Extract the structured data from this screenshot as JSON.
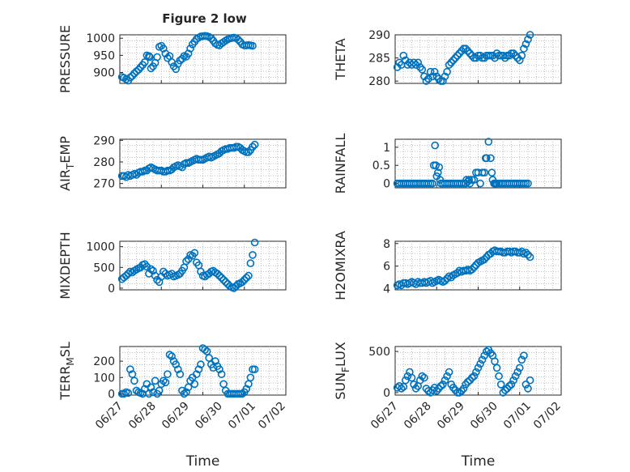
{
  "figure": {
    "title": "Figure 2 low",
    "time_label": "Time",
    "marker_color": "#0072BD",
    "grid": "minor-dotted"
  },
  "chart_data": [
    {
      "type": "scatter",
      "id": "pressure",
      "title": "Figure 2 low",
      "ylabel": "PRESSURE",
      "ylim": [
        868,
        1010
      ],
      "yticks": [
        900,
        950,
        1000
      ],
      "ytick_labels": [
        "900",
        "950",
        "1000"
      ],
      "xlim": [
        0,
        4
      ],
      "x_ticks_shown": false,
      "x": [
        0.05,
        0.1,
        0.15,
        0.2,
        0.25,
        0.3,
        0.35,
        0.4,
        0.45,
        0.5,
        0.55,
        0.6,
        0.65,
        0.7,
        0.72,
        0.75,
        0.8,
        0.85,
        0.9,
        0.95,
        1.0,
        1.05,
        1.1,
        1.15,
        1.2,
        1.25,
        1.3,
        1.35,
        1.4,
        1.45,
        1.5,
        1.55,
        1.6,
        1.65,
        1.7,
        1.75,
        1.8,
        1.85,
        1.9,
        1.95,
        2.0,
        2.05,
        2.1,
        2.15,
        2.2,
        2.25,
        2.3,
        2.35,
        2.4,
        2.45,
        2.5,
        2.55,
        2.6,
        2.65,
        2.7,
        2.75,
        2.8,
        2.85,
        2.9,
        2.95,
        3.0,
        3.05,
        3.1,
        3.15,
        3.2
      ],
      "y": [
        887,
        884,
        880,
        876,
        885,
        890,
        897,
        903,
        908,
        915,
        922,
        930,
        950,
        948,
        945,
        912,
        918,
        928,
        945,
        975,
        978,
        970,
        955,
        942,
        948,
        930,
        918,
        910,
        925,
        935,
        940,
        948,
        946,
        955,
        970,
        982,
        990,
        998,
        1002,
        1005,
        1006,
        1007,
        1006,
        1004,
        1000,
        993,
        985,
        981,
        979,
        985,
        989,
        993,
        997,
        999,
        1001,
        1002,
        1000,
        996,
        990,
        982,
        979,
        979,
        980,
        979,
        978
      ]
    },
    {
      "type": "scatter",
      "id": "theta",
      "ylabel": "THETA",
      "ylim": [
        279.5,
        290
      ],
      "yticks": [
        280,
        285,
        290
      ],
      "ytick_labels": [
        "280",
        "285",
        "290"
      ],
      "xlim": [
        0,
        4
      ],
      "x_ticks_shown": false,
      "x": [
        0.05,
        0.1,
        0.15,
        0.2,
        0.25,
        0.3,
        0.35,
        0.4,
        0.45,
        0.5,
        0.55,
        0.6,
        0.65,
        0.7,
        0.75,
        0.8,
        0.85,
        0.9,
        0.95,
        1.0,
        1.05,
        1.1,
        1.15,
        1.2,
        1.25,
        1.3,
        1.35,
        1.4,
        1.45,
        1.5,
        1.55,
        1.6,
        1.65,
        1.7,
        1.75,
        1.8,
        1.85,
        1.9,
        1.95,
        2.0,
        2.05,
        2.1,
        2.15,
        2.2,
        2.25,
        2.3,
        2.35,
        2.4,
        2.45,
        2.5,
        2.55,
        2.6,
        2.65,
        2.7,
        2.75,
        2.8,
        2.85,
        2.9,
        2.95,
        3.0,
        3.05,
        3.1,
        3.15,
        3.2,
        3.25
      ],
      "y": [
        283,
        284,
        283.5,
        285.5,
        284.5,
        283.5,
        284,
        283.5,
        284,
        283.5,
        284,
        283,
        282.5,
        281,
        280,
        280.5,
        282,
        281,
        282,
        281,
        280.5,
        280,
        280,
        281,
        282,
        283.5,
        284,
        284.5,
        285,
        285.5,
        286,
        286.5,
        287,
        287,
        286.5,
        286,
        285.5,
        285,
        285,
        285.5,
        285.5,
        285,
        285,
        285.5,
        285.5,
        285.5,
        285.5,
        285,
        286,
        285.5,
        285.5,
        285.5,
        285,
        285.5,
        285.5,
        286,
        286,
        285.5,
        285,
        284.5,
        285.5,
        287,
        288,
        289,
        290
      ]
    },
    {
      "type": "scatter",
      "id": "air_temp",
      "ylabel": "AIR",
      "ylabel_sub": "T",
      "ylabel_tail": "EMP",
      "ylim": [
        268,
        290.5
      ],
      "yticks": [
        270,
        280,
        290
      ],
      "ytick_labels": [
        "270",
        "280",
        "290"
      ],
      "xlim": [
        0,
        4
      ],
      "x_ticks_shown": false,
      "x": [
        0.05,
        0.1,
        0.15,
        0.2,
        0.25,
        0.3,
        0.35,
        0.4,
        0.45,
        0.5,
        0.55,
        0.6,
        0.65,
        0.7,
        0.75,
        0.8,
        0.85,
        0.9,
        0.95,
        1.0,
        1.05,
        1.1,
        1.15,
        1.2,
        1.25,
        1.3,
        1.35,
        1.4,
        1.45,
        1.5,
        1.55,
        1.6,
        1.65,
        1.7,
        1.75,
        1.8,
        1.85,
        1.9,
        1.95,
        2.0,
        2.05,
        2.1,
        2.15,
        2.2,
        2.25,
        2.3,
        2.35,
        2.4,
        2.45,
        2.5,
        2.55,
        2.6,
        2.65,
        2.7,
        2.75,
        2.8,
        2.85,
        2.9,
        2.95,
        3.0,
        3.05,
        3.1,
        3.15,
        3.2,
        3.25
      ],
      "y": [
        273.5,
        273.5,
        273,
        274,
        273.5,
        274,
        274.5,
        274,
        275,
        275.5,
        275.5,
        276,
        276,
        277,
        277.5,
        277,
        276.5,
        276,
        276,
        276,
        275.5,
        275.5,
        276,
        276,
        276.5,
        277.5,
        278,
        278.5,
        278,
        277.5,
        279,
        279.5,
        279.5,
        280,
        280.5,
        281,
        281.5,
        281,
        281,
        281,
        281.5,
        282,
        282.5,
        282,
        282.5,
        283,
        283.5,
        284,
        285,
        285.5,
        286,
        286,
        286.5,
        286.5,
        286.5,
        287,
        287,
        286.5,
        285.5,
        285,
        284.5,
        284.5,
        285.5,
        287,
        288
      ]
    },
    {
      "type": "scatter",
      "id": "rainfall",
      "ylabel": "RAINFALL",
      "ylim": [
        -0.12,
        1.22
      ],
      "yticks": [
        0,
        0.5,
        1
      ],
      "ytick_labels": [
        "0",
        "0.5",
        "1"
      ],
      "xlim": [
        0,
        4
      ],
      "x_ticks_shown": false,
      "x": [
        0.05,
        0.1,
        0.15,
        0.2,
        0.25,
        0.3,
        0.35,
        0.4,
        0.45,
        0.5,
        0.55,
        0.6,
        0.65,
        0.7,
        0.75,
        0.8,
        0.85,
        0.9,
        0.93,
        0.96,
        0.98,
        1.0,
        1.03,
        1.06,
        1.08,
        1.1,
        1.15,
        1.2,
        1.25,
        1.3,
        1.35,
        1.4,
        1.45,
        1.5,
        1.55,
        1.6,
        1.65,
        1.7,
        1.72,
        1.75,
        1.78,
        1.8,
        1.85,
        1.9,
        1.95,
        2.0,
        2.05,
        2.1,
        2.15,
        2.18,
        2.2,
        2.25,
        2.3,
        2.33,
        2.35,
        2.38,
        2.4,
        2.42,
        2.45,
        2.5,
        2.55,
        2.6,
        2.65,
        2.7,
        2.75,
        2.8,
        2.85,
        2.9,
        2.95,
        3.0,
        3.05,
        3.1,
        3.15,
        3.2
      ],
      "y": [
        0,
        0,
        0,
        0,
        0,
        0,
        0,
        0,
        0,
        0,
        0,
        0,
        0,
        0,
        0,
        0,
        0,
        0,
        0.5,
        1.05,
        0.5,
        0.2,
        0.3,
        0.45,
        0.1,
        0,
        0,
        0,
        0,
        0,
        0,
        0,
        0,
        0,
        0,
        0,
        0,
        0,
        0.1,
        0.05,
        0.1,
        0,
        0.1,
        0.1,
        0.3,
        0.3,
        0,
        0.3,
        0.3,
        0.7,
        0.7,
        1.15,
        0.7,
        0.3,
        0.1,
        0,
        0,
        0,
        0,
        0,
        0,
        0,
        0,
        0,
        0,
        0,
        0,
        0,
        0,
        0,
        0,
        0,
        0,
        0
      ]
    },
    {
      "type": "scatter",
      "id": "mixdepth",
      "ylabel": "MIXDEPTH",
      "ylim": [
        -40,
        1130
      ],
      "yticks": [
        0,
        500,
        1000
      ],
      "ytick_labels": [
        "0",
        "500",
        "1000"
      ],
      "xlim": [
        0,
        4
      ],
      "x_ticks_shown": false,
      "x": [
        0.05,
        0.1,
        0.15,
        0.2,
        0.25,
        0.3,
        0.35,
        0.4,
        0.45,
        0.5,
        0.55,
        0.6,
        0.65,
        0.7,
        0.75,
        0.8,
        0.85,
        0.9,
        0.95,
        1.0,
        1.05,
        1.1,
        1.15,
        1.2,
        1.25,
        1.3,
        1.35,
        1.4,
        1.45,
        1.5,
        1.55,
        1.6,
        1.65,
        1.7,
        1.75,
        1.8,
        1.85,
        1.9,
        1.95,
        2.0,
        2.05,
        2.1,
        2.15,
        2.2,
        2.25,
        2.3,
        2.35,
        2.4,
        2.45,
        2.5,
        2.55,
        2.6,
        2.65,
        2.7,
        2.75,
        2.8,
        2.85,
        2.9,
        2.95,
        3.0,
        3.05,
        3.1,
        3.15,
        3.2,
        3.25
      ],
      "y": [
        220,
        260,
        300,
        350,
        400,
        380,
        420,
        450,
        480,
        500,
        560,
        580,
        520,
        350,
        460,
        420,
        300,
        200,
        150,
        280,
        400,
        350,
        300,
        320,
        350,
        280,
        300,
        320,
        350,
        420,
        500,
        650,
        700,
        800,
        780,
        850,
        620,
        550,
        400,
        300,
        280,
        320,
        350,
        400,
        420,
        380,
        350,
        300,
        250,
        200,
        150,
        100,
        50,
        20,
        0,
        50,
        100,
        120,
        150,
        200,
        250,
        300,
        600,
        800,
        1100
      ]
    },
    {
      "type": "scatter",
      "id": "h2omixra",
      "ylabel": "H2OMIXRA",
      "ylim": [
        3.9,
        8.2
      ],
      "yticks": [
        4,
        6,
        8
      ],
      "ytick_labels": [
        "4",
        "6",
        "8"
      ],
      "xlim": [
        0,
        4
      ],
      "x_ticks_shown": false,
      "x": [
        0.05,
        0.1,
        0.15,
        0.2,
        0.25,
        0.3,
        0.35,
        0.4,
        0.45,
        0.5,
        0.55,
        0.6,
        0.65,
        0.7,
        0.75,
        0.8,
        0.85,
        0.9,
        0.95,
        1.0,
        1.05,
        1.1,
        1.15,
        1.2,
        1.25,
        1.3,
        1.35,
        1.4,
        1.45,
        1.5,
        1.55,
        1.6,
        1.65,
        1.7,
        1.75,
        1.8,
        1.85,
        1.9,
        1.95,
        2.0,
        2.05,
        2.1,
        2.15,
        2.2,
        2.25,
        2.3,
        2.35,
        2.4,
        2.45,
        2.5,
        2.55,
        2.6,
        2.65,
        2.7,
        2.75,
        2.8,
        2.85,
        2.9,
        2.95,
        3.0,
        3.05,
        3.1,
        3.15,
        3.2,
        3.25
      ],
      "y": [
        4.3,
        4.4,
        4.3,
        4.5,
        4.5,
        4.4,
        4.5,
        4.6,
        4.5,
        4.4,
        4.6,
        4.5,
        4.5,
        4.6,
        4.5,
        4.6,
        4.7,
        4.5,
        4.6,
        4.7,
        4.8,
        4.7,
        4.6,
        4.7,
        4.9,
        5.1,
        5.0,
        5.2,
        5.3,
        5.4,
        5.6,
        5.5,
        5.6,
        5.6,
        5.7,
        5.6,
        5.7,
        5.9,
        6.1,
        6.3,
        6.4,
        6.5,
        6.6,
        6.8,
        7.0,
        7.1,
        7.3,
        7.4,
        7.3,
        7.3,
        7.3,
        7.2,
        7.2,
        7.3,
        7.3,
        7.2,
        7.3,
        7.3,
        7.2,
        7.2,
        7.3,
        7.1,
        7.2,
        7.0,
        6.8
      ]
    },
    {
      "type": "scatter",
      "id": "terr_msl",
      "ylabel": "TERR",
      "ylabel_sub": "M",
      "ylabel_tail": "SL",
      "ylim": [
        -8,
        290
      ],
      "yticks": [
        0,
        100,
        200
      ],
      "ytick_labels": [
        "0",
        "100",
        "200"
      ],
      "xlim": [
        0,
        4
      ],
      "x_ticks": [
        0,
        0.5,
        1,
        1.5,
        2,
        2.5,
        3,
        3.5,
        4
      ],
      "x_tick_labels": [
        "06/27",
        "06/28",
        "06/29",
        "06/30",
        "07/01",
        "07/02"
      ],
      "x_tick_label_positions": [
        0,
        1,
        2,
        3,
        4,
        4.9
      ],
      "xlabel": "Time",
      "x": [
        0.05,
        0.1,
        0.15,
        0.2,
        0.25,
        0.3,
        0.35,
        0.4,
        0.45,
        0.5,
        0.55,
        0.6,
        0.65,
        0.7,
        0.75,
        0.8,
        0.85,
        0.9,
        0.95,
        1.0,
        1.05,
        1.1,
        1.15,
        1.2,
        1.25,
        1.3,
        1.35,
        1.4,
        1.45,
        1.5,
        1.55,
        1.6,
        1.65,
        1.7,
        1.75,
        1.8,
        1.85,
        1.9,
        1.95,
        2.0,
        2.05,
        2.1,
        2.15,
        2.2,
        2.25,
        2.3,
        2.35,
        2.4,
        2.45,
        2.5,
        2.55,
        2.6,
        2.65,
        2.7,
        2.75,
        2.8,
        2.85,
        2.9,
        2.95,
        3.0,
        3.05,
        3.1,
        3.15,
        3.2,
        3.25
      ],
      "y": [
        0,
        0,
        10,
        5,
        150,
        120,
        80,
        20,
        10,
        5,
        0,
        30,
        60,
        0,
        40,
        10,
        80,
        0,
        20,
        60,
        80,
        70,
        120,
        240,
        230,
        200,
        180,
        150,
        120,
        20,
        0,
        10,
        40,
        80,
        100,
        60,
        120,
        150,
        180,
        280,
        270,
        260,
        220,
        180,
        160,
        200,
        170,
        150,
        120,
        60,
        20,
        0,
        0,
        0,
        0,
        0,
        0,
        0,
        0,
        10,
        30,
        60,
        100,
        150,
        150
      ]
    },
    {
      "type": "scatter",
      "id": "sun_flux",
      "ylabel": "SUN",
      "ylabel_sub": "F",
      "ylabel_tail": "LUX",
      "ylim": [
        -30,
        560
      ],
      "yticks": [
        0,
        500
      ],
      "ytick_labels": [
        "0",
        "500"
      ],
      "xlim": [
        0,
        4
      ],
      "x_ticks": [
        0,
        0.5,
        1,
        1.5,
        2,
        2.5,
        3,
        3.5,
        4
      ],
      "x_tick_labels": [
        "06/27",
        "06/28",
        "06/29",
        "06/30",
        "07/01",
        "07/02"
      ],
      "x_tick_label_positions": [
        0,
        1,
        2,
        3,
        4,
        4.9
      ],
      "xlabel": "Time",
      "x": [
        0.05,
        0.1,
        0.15,
        0.2,
        0.25,
        0.3,
        0.35,
        0.4,
        0.45,
        0.5,
        0.55,
        0.6,
        0.65,
        0.7,
        0.75,
        0.8,
        0.85,
        0.9,
        0.95,
        1.0,
        1.05,
        1.1,
        1.15,
        1.2,
        1.25,
        1.3,
        1.35,
        1.4,
        1.45,
        1.5,
        1.55,
        1.6,
        1.65,
        1.7,
        1.75,
        1.8,
        1.85,
        1.9,
        1.95,
        2.0,
        2.05,
        2.1,
        2.15,
        2.2,
        2.25,
        2.3,
        2.35,
        2.4,
        2.45,
        2.5,
        2.55,
        2.6,
        2.65,
        2.7,
        2.75,
        2.8,
        2.85,
        2.9,
        2.95,
        3.0,
        3.05,
        3.1,
        3.15,
        3.2,
        3.25
      ],
      "y": [
        60,
        80,
        50,
        70,
        150,
        200,
        250,
        180,
        100,
        50,
        80,
        150,
        200,
        180,
        50,
        20,
        0,
        30,
        60,
        20,
        50,
        80,
        100,
        150,
        200,
        250,
        100,
        60,
        30,
        0,
        0,
        20,
        50,
        100,
        130,
        150,
        180,
        200,
        250,
        300,
        350,
        400,
        450,
        500,
        520,
        480,
        450,
        380,
        300,
        200,
        100,
        0,
        30,
        50,
        80,
        100,
        150,
        200,
        250,
        300,
        400,
        450,
        100,
        50,
        150
      ]
    }
  ]
}
